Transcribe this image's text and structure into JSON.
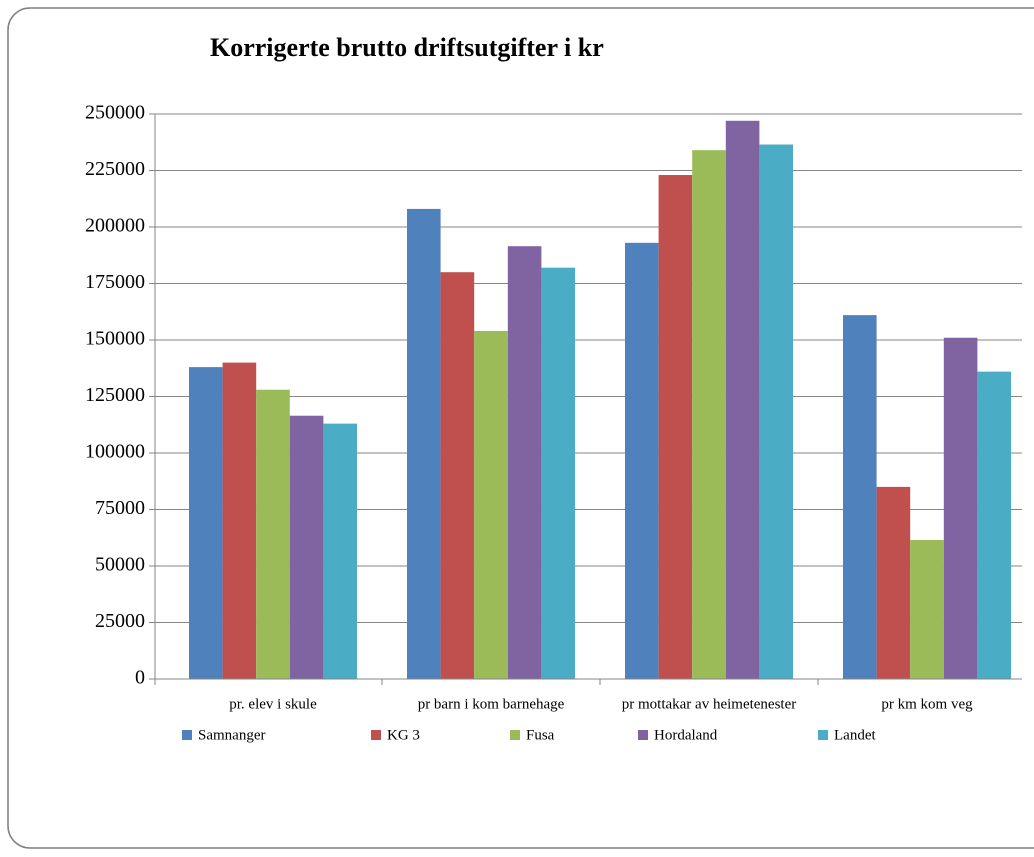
{
  "chart_data": {
    "type": "bar",
    "title": "Korrigerte brutto driftsutgifter i kr",
    "categories": [
      "pr. elev i skule",
      "pr barn i kom barnehage",
      "pr mottakar av heimetenester",
      "pr km kom veg"
    ],
    "series": [
      {
        "name": "Samnanger",
        "color": "#4f81bd",
        "values": [
          138000,
          208000,
          193000,
          161000
        ]
      },
      {
        "name": "KG 3",
        "color": "#c0504d",
        "values": [
          140000,
          180000,
          223000,
          85000
        ]
      },
      {
        "name": "Fusa",
        "color": "#9bbb59",
        "values": [
          128000,
          154000,
          234000,
          61500
        ]
      },
      {
        "name": "Hordaland",
        "color": "#8064a2",
        "values": [
          116500,
          191500,
          247000,
          151000
        ]
      },
      {
        "name": "Landet",
        "color": "#4bacc6",
        "values": [
          113000,
          182000,
          236500,
          136000
        ]
      }
    ],
    "ylim": [
      0,
      250000
    ],
    "yticks": [
      0,
      25000,
      50000,
      75000,
      100000,
      125000,
      150000,
      175000,
      200000,
      225000,
      250000
    ],
    "grid": true,
    "legend": "bottom"
  }
}
